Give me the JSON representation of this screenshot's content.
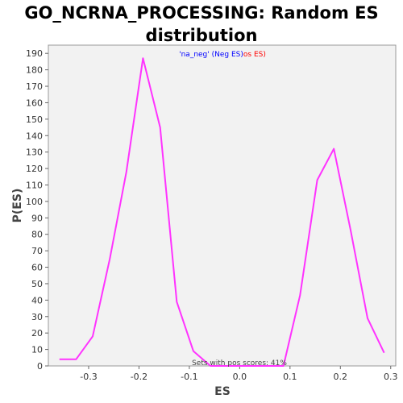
{
  "chart_data": {
    "type": "line",
    "title_line1": "GO_NCRNA_PROCESSING: Random ES",
    "title_line2": "distribution",
    "xlabel": "ES",
    "ylabel": "P(ES)",
    "xlim": [
      -0.38,
      0.31
    ],
    "ylim": [
      0,
      195
    ],
    "xticks": [
      -0.3,
      -0.2,
      -0.1,
      0.0,
      0.1,
      0.2,
      0.3
    ],
    "xtick_labels": [
      "-0.3",
      "-0.2",
      "-0.1",
      "0.0",
      "0.1",
      "0.2",
      "0.3"
    ],
    "yticks": [
      0,
      10,
      20,
      30,
      40,
      50,
      60,
      70,
      80,
      90,
      100,
      110,
      120,
      130,
      140,
      150,
      160,
      170,
      180,
      190
    ],
    "grid": false,
    "legend": {
      "placement": "top-center",
      "entries": [
        {
          "text": "'na_neg'",
          "color": "#0000ff"
        },
        {
          "text": " (Neg ES)",
          "color": "#0000ff"
        },
        {
          "text": "os ES)",
          "color": "#ff0000"
        }
      ]
    },
    "annotation": "Sets with pos scores: 41%",
    "line_color": "#ff33ff",
    "series": [
      {
        "x": [
          -0.358,
          -0.325,
          -0.292,
          -0.258,
          -0.225,
          -0.192,
          -0.158,
          -0.125,
          -0.092,
          -0.058,
          -0.025,
          0.008,
          0.042,
          0.075,
          0.087,
          0.12,
          0.154,
          0.187,
          0.22,
          0.254,
          0.287
        ],
        "y": [
          4,
          4,
          18,
          65,
          118,
          187,
          145,
          39,
          9,
          0,
          0,
          0,
          0,
          0,
          0,
          43,
          113,
          132,
          83,
          29,
          8
        ]
      }
    ]
  }
}
